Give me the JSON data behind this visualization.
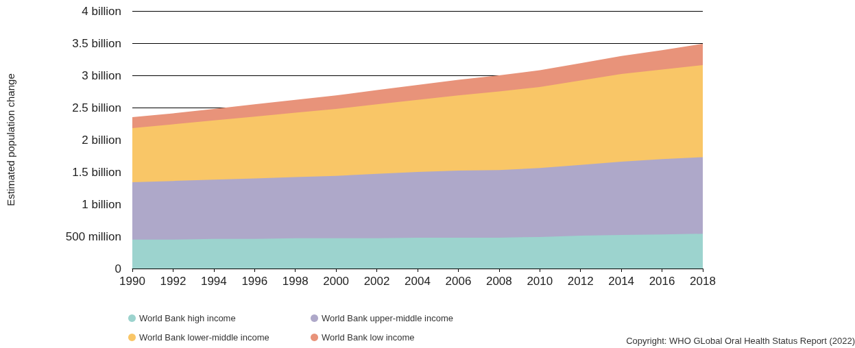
{
  "chart_data": {
    "type": "area",
    "ylabel": "Estimated population change",
    "stacked": true,
    "x": [
      1990,
      1992,
      1994,
      1996,
      1998,
      2000,
      2002,
      2004,
      2006,
      2008,
      2010,
      2012,
      2014,
      2016,
      2018
    ],
    "xlim": [
      1990,
      2018
    ],
    "xticks": [
      1990,
      1992,
      1994,
      1996,
      1998,
      2000,
      2002,
      2004,
      2006,
      2008,
      2010,
      2012,
      2014,
      2016,
      2018
    ],
    "ylim": [
      0,
      4000000000
    ],
    "yticks": [
      0,
      {
        "value": 500000000,
        "label": "500 million"
      },
      {
        "value": 1000000000,
        "label": "1 billion"
      },
      {
        "value": 1500000000,
        "label": "1.5 billion"
      },
      {
        "value": 2000000000,
        "label": "2 billion"
      },
      {
        "value": 2500000000,
        "label": "2.5 billion"
      },
      {
        "value": 3000000000,
        "label": "3 billion"
      },
      {
        "value": 3500000000,
        "label": "3.5 billion"
      },
      {
        "value": 4000000000,
        "label": "4 billion"
      }
    ],
    "series": [
      {
        "name": "World Bank high income",
        "color": "#9cd3ce",
        "values": [
          450000000,
          450000000,
          460000000,
          460000000,
          470000000,
          470000000,
          470000000,
          480000000,
          480000000,
          480000000,
          490000000,
          510000000,
          520000000,
          530000000,
          540000000
        ]
      },
      {
        "name": "World Bank upper-middle income",
        "color": "#aea8c9",
        "values": [
          890000000,
          910000000,
          920000000,
          940000000,
          950000000,
          970000000,
          1000000000,
          1020000000,
          1040000000,
          1050000000,
          1070000000,
          1100000000,
          1140000000,
          1170000000,
          1190000000
        ]
      },
      {
        "name": "World Bank lower-middle income",
        "color": "#f9c667",
        "values": [
          840000000,
          880000000,
          920000000,
          960000000,
          1000000000,
          1040000000,
          1080000000,
          1120000000,
          1170000000,
          1220000000,
          1260000000,
          1310000000,
          1360000000,
          1390000000,
          1430000000
        ]
      },
      {
        "name": "World Bank low income",
        "color": "#e8937a",
        "values": [
          170000000,
          170000000,
          180000000,
          190000000,
          200000000,
          210000000,
          220000000,
          230000000,
          240000000,
          250000000,
          260000000,
          270000000,
          280000000,
          300000000,
          330000000
        ]
      }
    ],
    "grid": "y",
    "legend": "bottom left",
    "annotations": [
      "Copyright: WHO GLobal Oral Health Status Report (2022)"
    ]
  }
}
